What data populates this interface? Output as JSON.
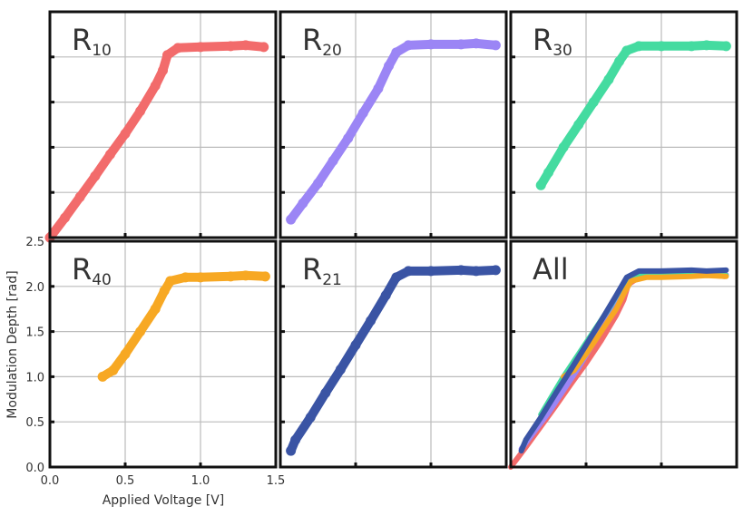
{
  "chart_data": {
    "type": "scatter",
    "layout": "3x2 small multiples, shared axes",
    "xlabel": "Applied Voltage [V]",
    "ylabel": "Modulation Depth [rad]",
    "xlim": [
      0,
      1.5
    ],
    "ylim": [
      0,
      2.5
    ],
    "xticks": [
      "0.0",
      "0.5",
      "1.0",
      "1.5"
    ],
    "yticks": [
      "0.0",
      "0.5",
      "1.0",
      "1.5",
      "2.0",
      "2.5"
    ],
    "grid": true,
    "series": [
      {
        "name": "R10",
        "label_main": "R",
        "label_sub": "10",
        "color": "#f26b6b",
        "points": [
          [
            0,
            0
          ],
          [
            0.1,
            0.22
          ],
          [
            0.2,
            0.45
          ],
          [
            0.3,
            0.68
          ],
          [
            0.4,
            0.92
          ],
          [
            0.5,
            1.15
          ],
          [
            0.6,
            1.4
          ],
          [
            0.7,
            1.68
          ],
          [
            0.75,
            1.85
          ],
          [
            0.78,
            2.02
          ],
          [
            0.85,
            2.1
          ],
          [
            1.0,
            2.11
          ],
          [
            1.2,
            2.12
          ],
          [
            1.3,
            2.13
          ],
          [
            1.42,
            2.11
          ]
        ]
      },
      {
        "name": "R20",
        "label_main": "R",
        "label_sub": "20",
        "color": "#9b85f5",
        "points": [
          [
            0.07,
            0.2
          ],
          [
            0.15,
            0.38
          ],
          [
            0.25,
            0.6
          ],
          [
            0.35,
            0.85
          ],
          [
            0.45,
            1.1
          ],
          [
            0.55,
            1.38
          ],
          [
            0.65,
            1.65
          ],
          [
            0.72,
            1.9
          ],
          [
            0.77,
            2.05
          ],
          [
            0.85,
            2.13
          ],
          [
            1.0,
            2.14
          ],
          [
            1.2,
            2.14
          ],
          [
            1.3,
            2.15
          ],
          [
            1.43,
            2.13
          ]
        ]
      },
      {
        "name": "R30",
        "label_main": "R",
        "label_sub": "30",
        "color": "#44dba0",
        "points": [
          [
            0.2,
            0.58
          ],
          [
            0.25,
            0.72
          ],
          [
            0.35,
            1.0
          ],
          [
            0.45,
            1.25
          ],
          [
            0.55,
            1.5
          ],
          [
            0.65,
            1.75
          ],
          [
            0.72,
            1.95
          ],
          [
            0.77,
            2.07
          ],
          [
            0.85,
            2.12
          ],
          [
            1.0,
            2.12
          ],
          [
            1.2,
            2.12
          ],
          [
            1.3,
            2.13
          ],
          [
            1.43,
            2.12
          ]
        ]
      },
      {
        "name": "R40",
        "label_main": "R",
        "label_sub": "40",
        "color": "#f7a823",
        "points": [
          [
            0.35,
            1.0
          ],
          [
            0.42,
            1.07
          ],
          [
            0.5,
            1.25
          ],
          [
            0.6,
            1.5
          ],
          [
            0.7,
            1.75
          ],
          [
            0.76,
            1.95
          ],
          [
            0.8,
            2.06
          ],
          [
            0.9,
            2.1
          ],
          [
            1.0,
            2.1
          ],
          [
            1.2,
            2.11
          ],
          [
            1.3,
            2.12
          ],
          [
            1.43,
            2.11
          ]
        ]
      },
      {
        "name": "R21",
        "label_main": "R",
        "label_sub": "21",
        "color": "#3a54a4",
        "points": [
          [
            0.07,
            0.18
          ],
          [
            0.1,
            0.3
          ],
          [
            0.2,
            0.55
          ],
          [
            0.3,
            0.82
          ],
          [
            0.4,
            1.08
          ],
          [
            0.5,
            1.35
          ],
          [
            0.6,
            1.62
          ],
          [
            0.7,
            1.9
          ],
          [
            0.77,
            2.1
          ],
          [
            0.85,
            2.17
          ],
          [
            1.0,
            2.17
          ],
          [
            1.2,
            2.18
          ],
          [
            1.3,
            2.17
          ],
          [
            1.43,
            2.18
          ]
        ]
      }
    ],
    "panels": [
      {
        "label_main": "R",
        "label_sub": "10",
        "series": [
          "R10"
        ]
      },
      {
        "label_main": "R",
        "label_sub": "20",
        "series": [
          "R20"
        ]
      },
      {
        "label_main": "R",
        "label_sub": "30",
        "series": [
          "R30"
        ]
      },
      {
        "label_main": "R",
        "label_sub": "40",
        "series": [
          "R40"
        ]
      },
      {
        "label_main": "R",
        "label_sub": "21",
        "series": [
          "R21"
        ]
      },
      {
        "label_main": "All",
        "label_sub": "",
        "series": [
          "R10",
          "R20",
          "R30",
          "R40",
          "R21"
        ]
      }
    ]
  }
}
